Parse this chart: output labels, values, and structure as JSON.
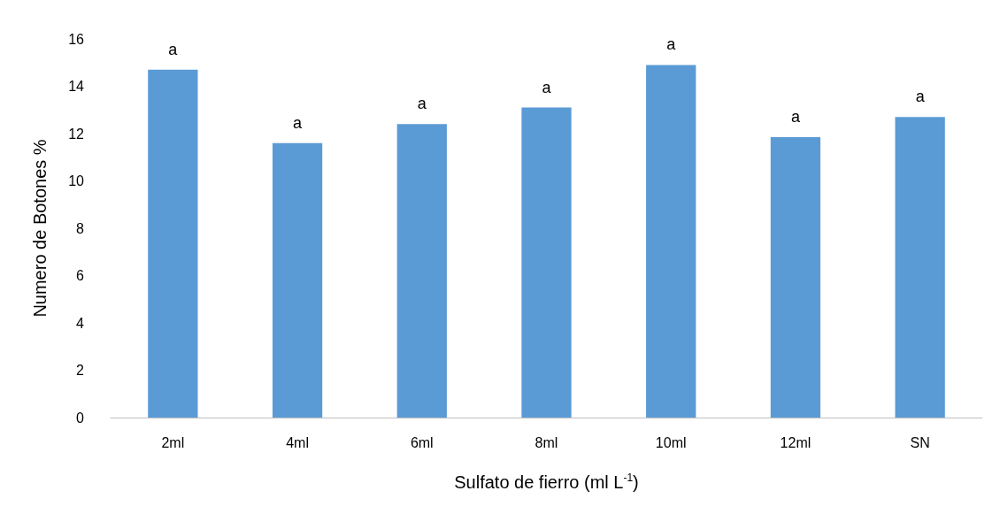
{
  "chart_data": {
    "type": "bar",
    "xlabel": "Sulfato de fierro (ml L$^{-1}$)",
    "ylabel": "Numero de Botones %",
    "categories": [
      "2ml",
      "4ml",
      "6ml",
      "8ml",
      "10ml",
      "12ml",
      "SN"
    ],
    "values": [
      14.7,
      11.6,
      12.4,
      13.1,
      14.9,
      11.85,
      12.7
    ],
    "color": "#5b9bd5",
    "ylim": [
      0,
      16
    ],
    "yticks": [
      0,
      2,
      4,
      6,
      8,
      10,
      12,
      14,
      16
    ],
    "grid": false,
    "annotations": [
      {
        "text": "a",
        "x": "2ml",
        "y": 14.7
      },
      {
        "text": "a",
        "x": "4ml",
        "y": 11.6
      },
      {
        "text": "a",
        "x": "6ml",
        "y": 12.4
      },
      {
        "text": "a",
        "x": "8ml",
        "y": 13.1
      },
      {
        "text": "a",
        "x": "10ml",
        "y": 14.9
      },
      {
        "text": "a",
        "x": "12ml",
        "y": 11.85
      },
      {
        "text": "a",
        "x": "SN",
        "y": 12.7
      }
    ]
  }
}
